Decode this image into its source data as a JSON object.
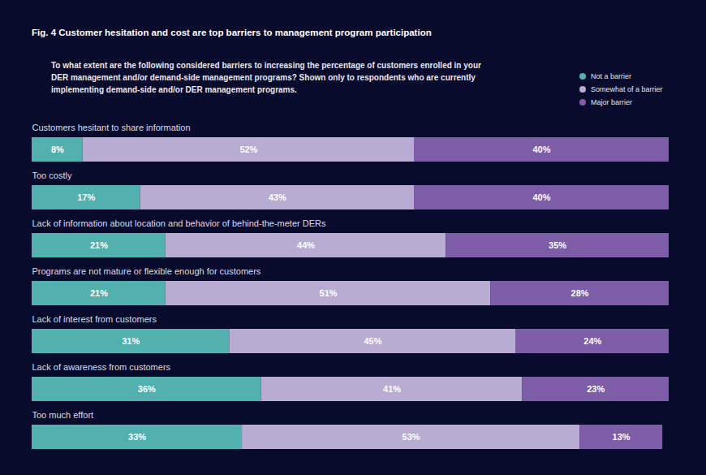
{
  "chart_data": {
    "type": "bar",
    "title": "Fig. 4  Customer hesitation and cost are top barriers to management program participation",
    "subtitle": "To what extent are the following considered barriers to increasing the percentage of customers enrolled in your DER management and/or demand-side management programs? Shown only to respondents who are currently implementing demand-side and/or DER management programs.",
    "categories": [
      "Customers hesitant to share information",
      "Too costly",
      "Lack of information about location and behavior of behind-the-meter DERs",
      "Programs are not mature or flexible enough for customers",
      "Lack of interest from customers",
      "Lack of awareness from customers",
      "Too much effort"
    ],
    "series": [
      {
        "name": "Not a barrier",
        "color": "#52b0ae",
        "values": [
          8,
          17,
          21,
          21,
          31,
          36,
          33
        ],
        "value_labels": [
          "8%",
          "17%",
          "21%",
          "21%",
          "31%",
          "36%",
          "33%"
        ]
      },
      {
        "name": "Somewhat of a barrier",
        "color": "#b8acd3",
        "values": [
          52,
          43,
          44,
          51,
          45,
          41,
          53
        ],
        "value_labels": [
          "52%",
          "43%",
          "44%",
          "51%",
          "45%",
          "41%",
          "53%"
        ]
      },
      {
        "name": "Major barrier",
        "color": "#7d5ca8",
        "values": [
          40,
          40,
          35,
          28,
          24,
          23,
          13
        ],
        "value_labels": [
          "40%",
          "40%",
          "35%",
          "28%",
          "24%",
          "23%",
          "13%"
        ]
      }
    ],
    "orientation": "horizontal",
    "stacked": true,
    "data_labels": true,
    "tick_labels": false,
    "legend": "top-right",
    "xlim": [
      0,
      100
    ]
  }
}
